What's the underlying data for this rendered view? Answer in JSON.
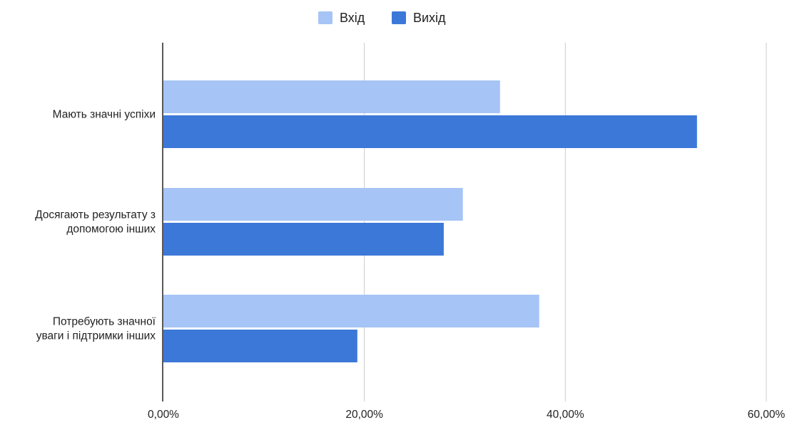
{
  "chart_data": {
    "type": "bar",
    "orientation": "horizontal",
    "categories": [
      [
        "Мають значні успіхи"
      ],
      [
        "Досягають результату з",
        "допомогою інших"
      ],
      [
        "Потребують значної",
        "уваги і підтримки інших"
      ]
    ],
    "series": [
      {
        "name": "Вхід",
        "color": "#a6c4f5",
        "values": [
          33.5,
          29.8,
          37.4
        ]
      },
      {
        "name": "Вихід",
        "color": "#3c78d8",
        "values": [
          53.1,
          27.9,
          19.3
        ]
      }
    ],
    "xlim": [
      0,
      60
    ],
    "x_ticks": [
      0,
      20,
      40,
      60
    ],
    "x_tick_labels": [
      "0,00%",
      "20,00%",
      "40,00%",
      "60,00%"
    ],
    "value_format": "percent",
    "grid": true,
    "legend_position": "top-center",
    "title": "",
    "xlabel": "",
    "ylabel": ""
  }
}
